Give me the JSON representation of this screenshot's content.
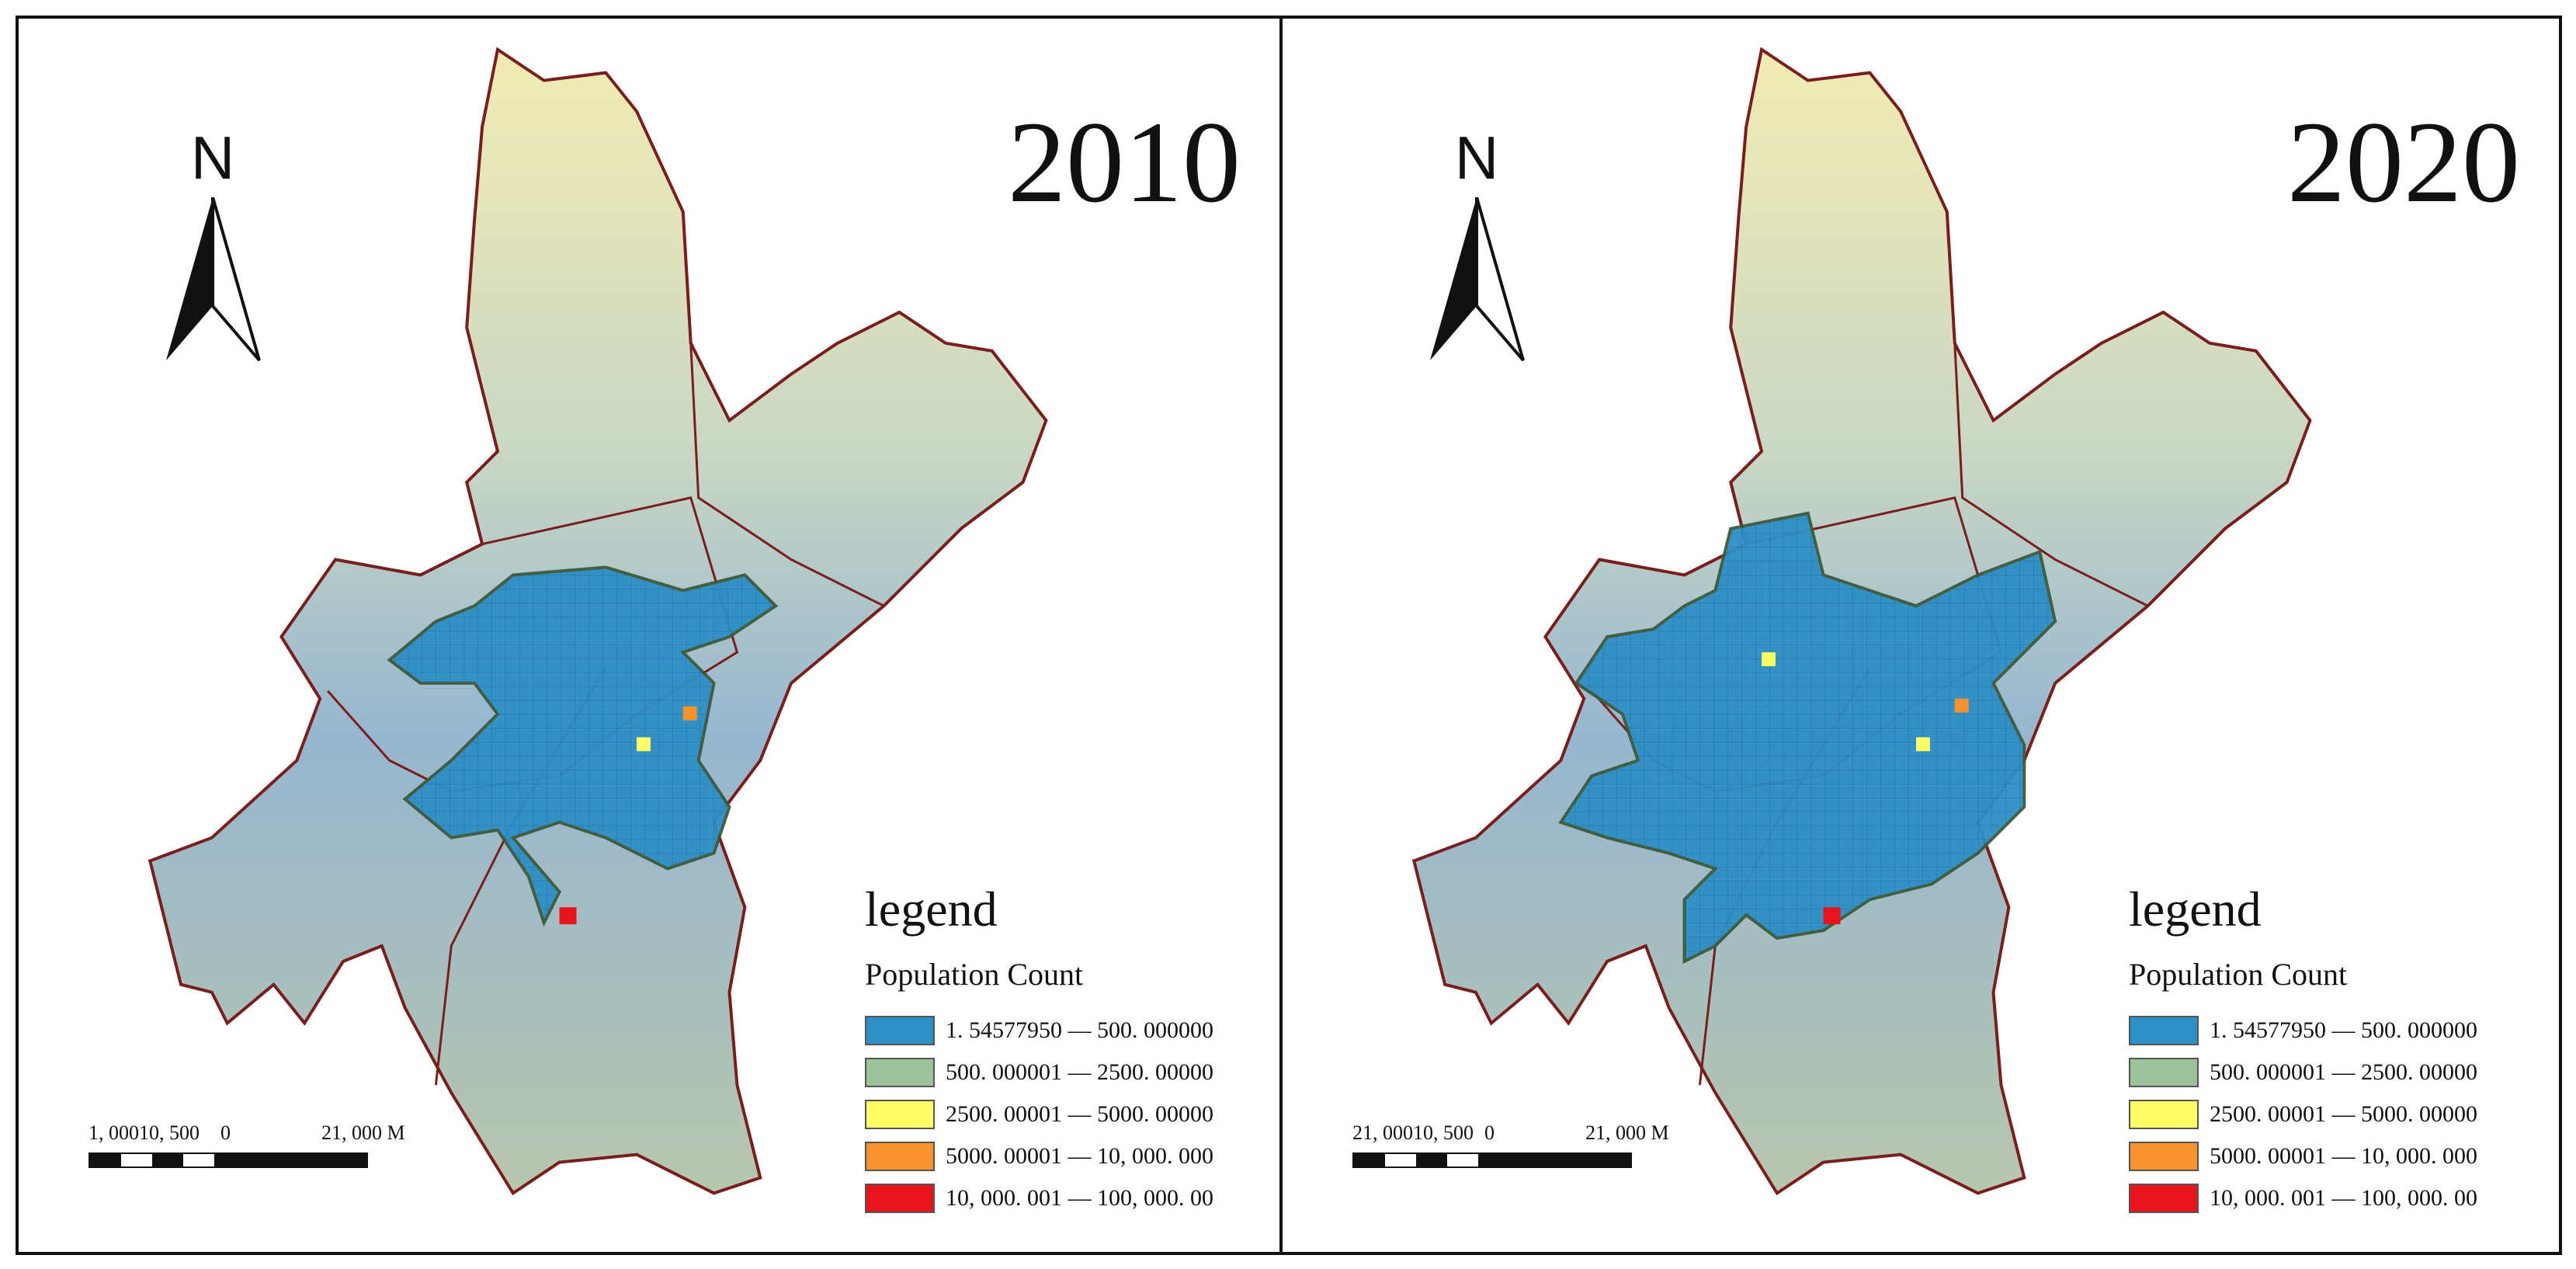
{
  "panels": [
    {
      "year": "2010",
      "north_label": "N",
      "scale": {
        "left_label": "1, 00010, 500",
        "zero_label": "0",
        "right_label": "21, 000 M"
      },
      "legend": {
        "title": "legend",
        "subtitle": "Population Count",
        "classes": [
          {
            "label": "1. 54577950 — 500. 000000",
            "color": "#2e8fc6"
          },
          {
            "label": "500. 000001 — 2500. 00000",
            "color": "#9dc29a"
          },
          {
            "label": "2500. 00001 — 5000. 00000",
            "color": "#ffff66"
          },
          {
            "label": "5000. 00001 — 10, 000. 000",
            "color": "#f7922e"
          },
          {
            "label": "10, 000. 001 — 100, 000. 00",
            "color": "#e8141b"
          }
        ]
      }
    },
    {
      "year": "2020",
      "north_label": "N",
      "scale": {
        "left_label": "21, 00010, 500",
        "zero_label": "0",
        "right_label": "21, 000 M"
      },
      "legend": {
        "title": "legend",
        "subtitle": "Population Count",
        "classes": [
          {
            "label": "1. 54577950 — 500. 000000",
            "color": "#2e8fc6"
          },
          {
            "label": "500. 000001 — 2500. 00000",
            "color": "#9dc29a"
          },
          {
            "label": "2500. 00001 — 5000. 00000",
            "color": "#ffff66"
          },
          {
            "label": "5000. 00001 — 10, 000. 000",
            "color": "#f7922e"
          },
          {
            "label": "10, 000. 001 — 100, 000. 00",
            "color": "#e8141b"
          }
        ]
      }
    }
  ],
  "colors": {
    "boundary": "#7a1d1d",
    "terrain_low": "#8fb1cf",
    "terrain_high": "#f2ecb4"
  }
}
